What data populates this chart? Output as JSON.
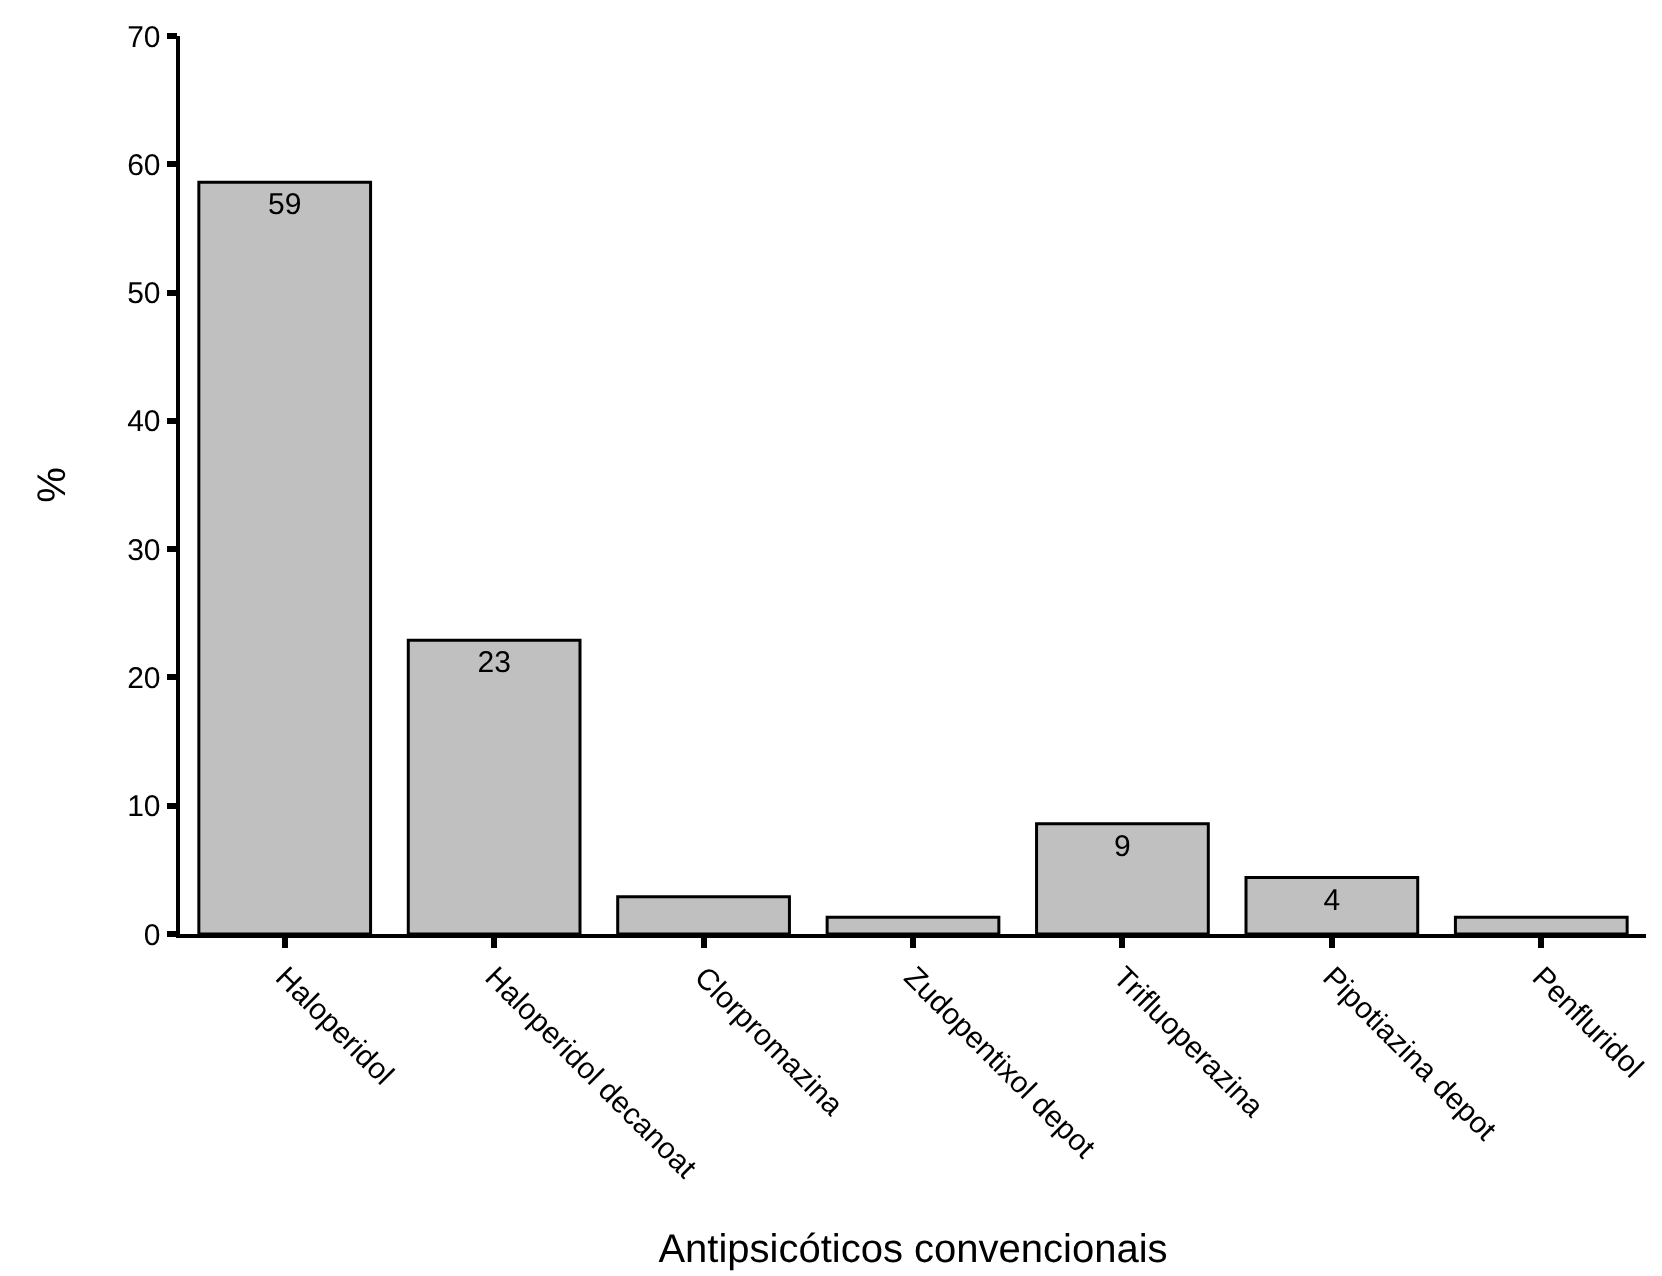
{
  "chart_data": {
    "type": "bar",
    "xlabel": "Antipsicóticos convencionais",
    "ylabel": "%",
    "categories": [
      "Haloperidol",
      "Haloperidol decanoat",
      "Clorpromazina",
      "Zudopentixol depot",
      "Trifluoperazina",
      "Pipotiazina depot",
      "Penfluridol"
    ],
    "values": [
      58.6,
      22.9,
      2.9,
      1.3,
      8.6,
      4.4,
      1.3
    ],
    "value_labels": [
      "59",
      "23",
      null,
      null,
      "9",
      "4",
      null
    ],
    "color": "#c0c0c0",
    "ylim": [
      0,
      70
    ],
    "yticks": [
      0,
      10,
      20,
      30,
      40,
      50,
      60,
      70
    ],
    "grid": false,
    "legend": false
  }
}
